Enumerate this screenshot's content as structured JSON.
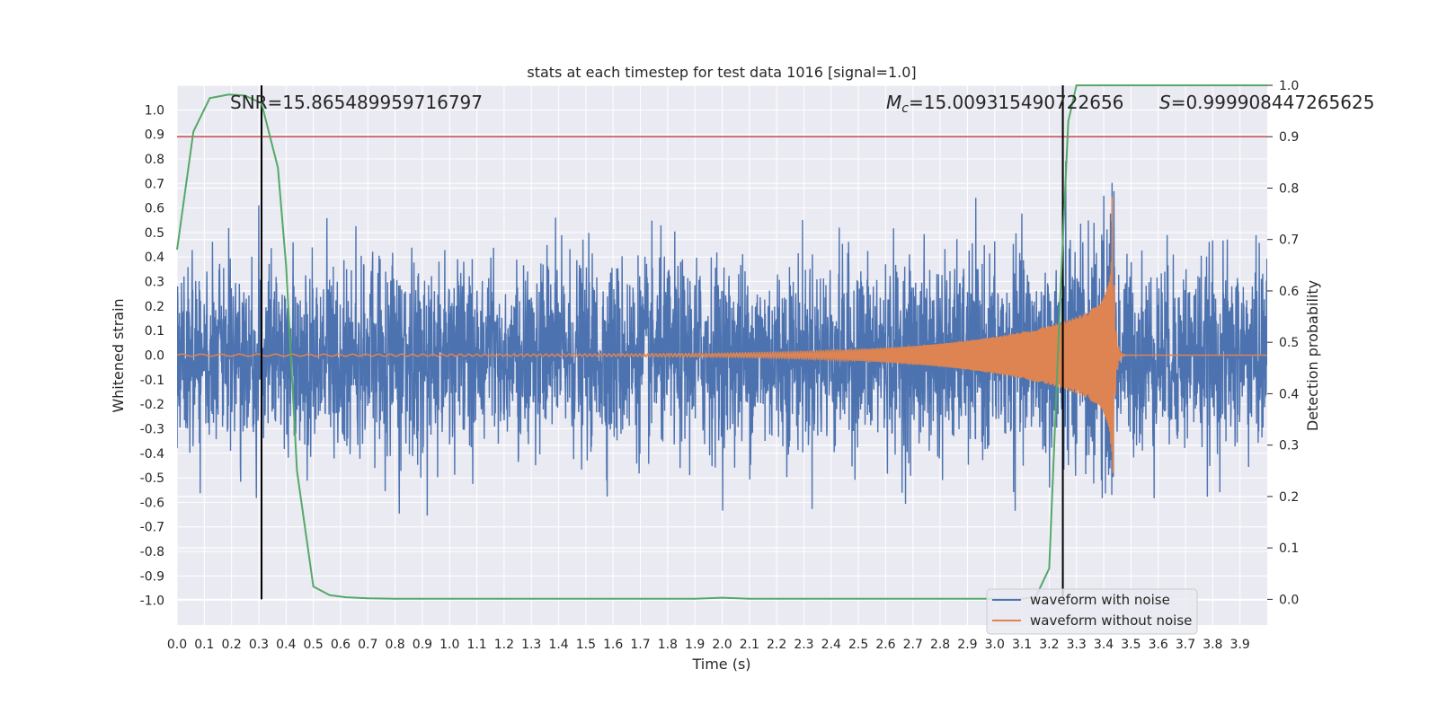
{
  "chart_data": {
    "type": "line",
    "title": "stats at each timestep for test data 1016 [signal=1.0]",
    "xlabel": "Time (s)",
    "ylabel": "Whitened strain",
    "y2label": "Detection probability",
    "xlim": [
      0.0,
      4.0
    ],
    "ylim": [
      -1.1,
      1.1
    ],
    "y2lim": [
      -0.05,
      1.0
    ],
    "x_ticks": [
      "0.0",
      "0.1",
      "0.2",
      "0.3",
      "0.4",
      "0.5",
      "0.6",
      "0.7",
      "0.8",
      "0.9",
      "1.0",
      "1.1",
      "1.2",
      "1.3",
      "1.4",
      "1.5",
      "1.6",
      "1.7",
      "1.8",
      "1.9",
      "2.0",
      "2.1",
      "2.2",
      "2.3",
      "2.4",
      "2.5",
      "2.6",
      "2.7",
      "2.8",
      "2.9",
      "3.0",
      "3.1",
      "3.2",
      "3.3",
      "3.4",
      "3.5",
      "3.6",
      "3.7",
      "3.8",
      "3.9"
    ],
    "y_ticks": [
      "1.0",
      "0.9",
      "0.8",
      "0.7",
      "0.6",
      "0.5",
      "0.4",
      "0.3",
      "0.2",
      "0.1",
      "0.0",
      "-0.1",
      "-0.2",
      "-0.3",
      "-0.4",
      "-0.5",
      "-0.6",
      "-0.7",
      "-0.8",
      "-0.9",
      "-1.0"
    ],
    "y2_ticks": [
      "1.0",
      "0.9",
      "0.8",
      "0.7",
      "0.6",
      "0.5",
      "0.4",
      "0.3",
      "0.2",
      "0.1",
      "0.0"
    ],
    "annotations": {
      "snr": "SNR=15.865489959716797",
      "mc_symbol": "M",
      "mc_sub": "c",
      "mc_value": "=15.009315490722656",
      "s_symbol": "S",
      "s_value": "=0.999908447265625"
    },
    "vlines_x": [
      0.31,
      3.25
    ],
    "threshold_y2": 0.9,
    "series": [
      {
        "name": "waveform with noise",
        "color": "#4c72b0",
        "axis": "left",
        "std": 0.19,
        "max_abs": 0.99
      },
      {
        "name": "waveform without noise",
        "color": "#dd8452",
        "axis": "left",
        "merger_x": 3.43,
        "amp_start": 0.02,
        "amp_peak": 0.8,
        "f_start": 14,
        "f_merger": 90
      },
      {
        "name": "Detection probability",
        "color": "#55a868",
        "axis": "right",
        "x": [
          0.0,
          0.06,
          0.12,
          0.19,
          0.25,
          0.31,
          0.37,
          0.4,
          0.44,
          0.5,
          0.56,
          0.62,
          0.7,
          0.8,
          1.0,
          1.5,
          1.9,
          2.0,
          2.1,
          2.5,
          2.9,
          3.1,
          3.15,
          3.2,
          3.24,
          3.27,
          3.3,
          3.35,
          3.5,
          4.0
        ],
        "y": [
          0.68,
          0.91,
          0.975,
          0.982,
          0.98,
          0.965,
          0.84,
          0.65,
          0.25,
          0.025,
          0.008,
          0.004,
          0.002,
          0.001,
          0.001,
          0.001,
          0.001,
          0.003,
          0.001,
          0.001,
          0.001,
          0.001,
          0.004,
          0.06,
          0.58,
          0.93,
          1.0,
          1.0,
          1.0,
          1.0
        ]
      }
    ],
    "threshold_color": "#c44e52",
    "grid": true,
    "legend_position": "lower-right",
    "legend": [
      "waveform with noise",
      "waveform without noise"
    ]
  }
}
